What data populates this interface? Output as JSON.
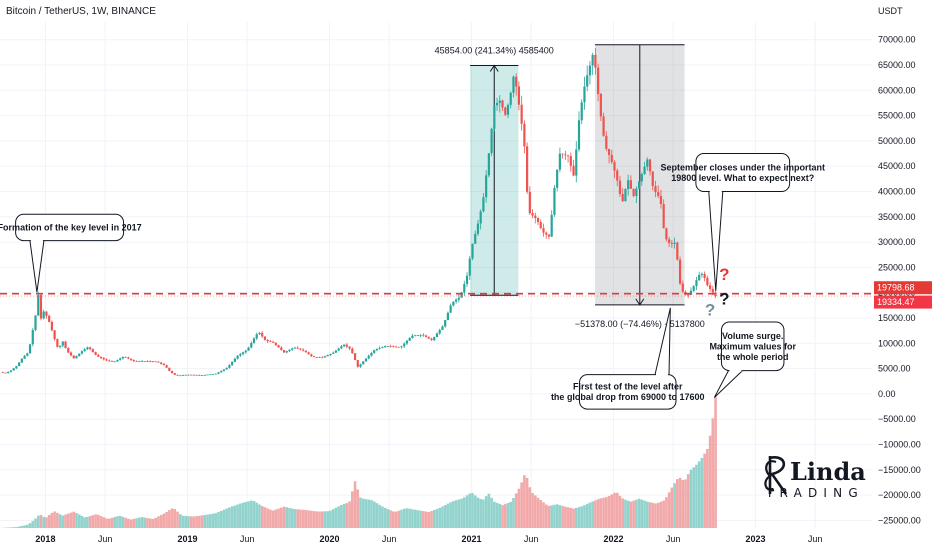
{
  "chart_data": {
    "type": "candlestick",
    "title": "Bitcoin / TetherUS, 1W, BINANCE",
    "currency": "USDT",
    "y_ticks": [
      70000,
      65000,
      60000,
      55000,
      50000,
      45000,
      40000,
      35000,
      30000,
      25000,
      20000,
      15000,
      10000,
      5000,
      0,
      -5000,
      -10000,
      -15000,
      -20000,
      -25000
    ],
    "y_tick_labels": [
      "70000.00",
      "65000.00",
      "60000.00",
      "55000.00",
      "50000.00",
      "45000.00",
      "40000.00",
      "35000.00",
      "30000.00",
      "25000.00",
      "20000.00",
      "15000.00",
      "10000.00",
      "5000.00",
      "0.00",
      "−5000.00",
      "−10000.00",
      "−15000.00",
      "−20000.00",
      "−25000.00"
    ],
    "ylim": [
      -26500,
      73500
    ],
    "x_ticks": [
      {
        "label": "2018",
        "t": 2018.0,
        "bold": true
      },
      {
        "label": "Jun",
        "t": 2018.42,
        "bold": false
      },
      {
        "label": "2019",
        "t": 2019.0,
        "bold": true
      },
      {
        "label": "Jun",
        "t": 2019.42,
        "bold": false
      },
      {
        "label": "2020",
        "t": 2020.0,
        "bold": true
      },
      {
        "label": "Jun",
        "t": 2020.42,
        "bold": false
      },
      {
        "label": "2021",
        "t": 2021.0,
        "bold": true
      },
      {
        "label": "Jun",
        "t": 2021.42,
        "bold": false
      },
      {
        "label": "2022",
        "t": 2022.0,
        "bold": true
      },
      {
        "label": "Jun",
        "t": 2022.42,
        "bold": false
      },
      {
        "label": "2023",
        "t": 2023.0,
        "bold": true
      },
      {
        "label": "Jun",
        "t": 2023.42,
        "bold": false
      }
    ],
    "xlim": [
      2017.68,
      2023.82
    ],
    "price_path": [
      [
        2017.68,
        4300
      ],
      [
        2017.72,
        4100
      ],
      [
        2017.76,
        4700
      ],
      [
        2017.8,
        5600
      ],
      [
        2017.84,
        7200
      ],
      [
        2017.88,
        8200
      ],
      [
        2017.9,
        11000
      ],
      [
        2017.93,
        15500
      ],
      [
        2017.95,
        19700
      ],
      [
        2017.97,
        14500
      ],
      [
        2017.99,
        16500
      ],
      [
        2018.03,
        14000
      ],
      [
        2018.06,
        11200
      ],
      [
        2018.09,
        8800
      ],
      [
        2018.12,
        10500
      ],
      [
        2018.15,
        8500
      ],
      [
        2018.2,
        7000
      ],
      [
        2018.25,
        8300
      ],
      [
        2018.3,
        9300
      ],
      [
        2018.36,
        7500
      ],
      [
        2018.42,
        6700
      ],
      [
        2018.48,
        6300
      ],
      [
        2018.55,
        7400
      ],
      [
        2018.62,
        6500
      ],
      [
        2018.7,
        6500
      ],
      [
        2018.78,
        6400
      ],
      [
        2018.84,
        5600
      ],
      [
        2018.88,
        4300
      ],
      [
        2018.92,
        3600
      ],
      [
        2019.0,
        3800
      ],
      [
        2019.1,
        3700
      ],
      [
        2019.2,
        4000
      ],
      [
        2019.28,
        5200
      ],
      [
        2019.35,
        7500
      ],
      [
        2019.42,
        8700
      ],
      [
        2019.48,
        11500
      ],
      [
        2019.5,
        12300
      ],
      [
        2019.55,
        10500
      ],
      [
        2019.6,
        10200
      ],
      [
        2019.68,
        8200
      ],
      [
        2019.75,
        9200
      ],
      [
        2019.82,
        8500
      ],
      [
        2019.88,
        7300
      ],
      [
        2019.95,
        7200
      ],
      [
        2020.03,
        8200
      ],
      [
        2020.1,
        9800
      ],
      [
        2020.15,
        8800
      ],
      [
        2020.2,
        5300
      ],
      [
        2020.25,
        6800
      ],
      [
        2020.32,
        8800
      ],
      [
        2020.4,
        9500
      ],
      [
        2020.5,
        9200
      ],
      [
        2020.58,
        11500
      ],
      [
        2020.65,
        11700
      ],
      [
        2020.72,
        10600
      ],
      [
        2020.8,
        13500
      ],
      [
        2020.86,
        18000
      ],
      [
        2020.92,
        19200
      ],
      [
        2020.97,
        23500
      ],
      [
        2021.0,
        29000
      ],
      [
        2021.04,
        33000
      ],
      [
        2021.08,
        38000
      ],
      [
        2021.12,
        47000
      ],
      [
        2021.16,
        57000
      ],
      [
        2021.2,
        58000
      ],
      [
        2021.24,
        55000
      ],
      [
        2021.28,
        60000
      ],
      [
        2021.3,
        63500
      ],
      [
        2021.34,
        56000
      ],
      [
        2021.37,
        50000
      ],
      [
        2021.4,
        36000
      ],
      [
        2021.46,
        34500
      ],
      [
        2021.5,
        32000
      ],
      [
        2021.55,
        31000
      ],
      [
        2021.58,
        40000
      ],
      [
        2021.62,
        47500
      ],
      [
        2021.68,
        47000
      ],
      [
        2021.72,
        43000
      ],
      [
        2021.76,
        55000
      ],
      [
        2021.8,
        61500
      ],
      [
        2021.84,
        65500
      ],
      [
        2021.86,
        67800
      ],
      [
        2021.9,
        57000
      ],
      [
        2021.94,
        49000
      ],
      [
        2021.98,
        46500
      ],
      [
        2022.02,
        43000
      ],
      [
        2022.06,
        37500
      ],
      [
        2022.1,
        42500
      ],
      [
        2022.14,
        39000
      ],
      [
        2022.18,
        42000
      ],
      [
        2022.24,
        46500
      ],
      [
        2022.28,
        40500
      ],
      [
        2022.33,
        38500
      ],
      [
        2022.36,
        31000
      ],
      [
        2022.4,
        29500
      ],
      [
        2022.44,
        30000
      ],
      [
        2022.46,
        22500
      ],
      [
        2022.49,
        20000
      ],
      [
        2022.52,
        19300
      ],
      [
        2022.56,
        21000
      ],
      [
        2022.6,
        23500
      ],
      [
        2022.63,
        23800
      ],
      [
        2022.66,
        21500
      ],
      [
        2022.7,
        20000
      ],
      [
        2022.72,
        19300
      ]
    ],
    "volume_path": [
      [
        2017.68,
        0
      ],
      [
        2017.8,
        200
      ],
      [
        2017.88,
        700
      ],
      [
        2017.92,
        1600
      ],
      [
        2017.96,
        2800
      ],
      [
        2018.0,
        2000
      ],
      [
        2018.06,
        3400
      ],
      [
        2018.12,
        2500
      ],
      [
        2018.2,
        3300
      ],
      [
        2018.28,
        2100
      ],
      [
        2018.36,
        2800
      ],
      [
        2018.44,
        1800
      ],
      [
        2018.52,
        2500
      ],
      [
        2018.6,
        1700
      ],
      [
        2018.68,
        2200
      ],
      [
        2018.76,
        1800
      ],
      [
        2018.84,
        3000
      ],
      [
        2018.9,
        4100
      ],
      [
        2018.96,
        2500
      ],
      [
        2019.04,
        2300
      ],
      [
        2019.12,
        2600
      ],
      [
        2019.2,
        3000
      ],
      [
        2019.3,
        4200
      ],
      [
        2019.38,
        5000
      ],
      [
        2019.46,
        5600
      ],
      [
        2019.52,
        4500
      ],
      [
        2019.6,
        3500
      ],
      [
        2019.68,
        4300
      ],
      [
        2019.76,
        3800
      ],
      [
        2019.84,
        3600
      ],
      [
        2019.92,
        3300
      ],
      [
        2020.0,
        3400
      ],
      [
        2020.08,
        4600
      ],
      [
        2020.14,
        5200
      ],
      [
        2020.18,
        9400
      ],
      [
        2020.22,
        6000
      ],
      [
        2020.3,
        5600
      ],
      [
        2020.38,
        4200
      ],
      [
        2020.46,
        3200
      ],
      [
        2020.54,
        4000
      ],
      [
        2020.62,
        3600
      ],
      [
        2020.7,
        3200
      ],
      [
        2020.78,
        4100
      ],
      [
        2020.86,
        5300
      ],
      [
        2020.94,
        6000
      ],
      [
        2021.0,
        7200
      ],
      [
        2021.04,
        6200
      ],
      [
        2021.08,
        5600
      ],
      [
        2021.12,
        7000
      ],
      [
        2021.16,
        5300
      ],
      [
        2021.22,
        4600
      ],
      [
        2021.28,
        5300
      ],
      [
        2021.34,
        8200
      ],
      [
        2021.38,
        11200
      ],
      [
        2021.42,
        7300
      ],
      [
        2021.48,
        5800
      ],
      [
        2021.54,
        4400
      ],
      [
        2021.6,
        4800
      ],
      [
        2021.66,
        4300
      ],
      [
        2021.72,
        3900
      ],
      [
        2021.78,
        4400
      ],
      [
        2021.84,
        5200
      ],
      [
        2021.9,
        5900
      ],
      [
        2021.96,
        6300
      ],
      [
        2022.02,
        7300
      ],
      [
        2022.06,
        6000
      ],
      [
        2022.12,
        5300
      ],
      [
        2022.18,
        5900
      ],
      [
        2022.24,
        5300
      ],
      [
        2022.3,
        4900
      ],
      [
        2022.36,
        5600
      ],
      [
        2022.42,
        8600
      ],
      [
        2022.46,
        10300
      ],
      [
        2022.5,
        9400
      ],
      [
        2022.54,
        11600
      ],
      [
        2022.58,
        12600
      ],
      [
        2022.62,
        14000
      ],
      [
        2022.66,
        15800
      ],
      [
        2022.69,
        20000
      ],
      [
        2022.72,
        26800
      ]
    ],
    "level": 19800,
    "price_labels": [
      {
        "value": 19798.68,
        "text": "19798.68",
        "color": "#e53935"
      },
      {
        "value": 19334.47,
        "text": "19334.47",
        "color": "#f23645"
      }
    ],
    "measure_up": {
      "x_start": 2020.99,
      "x_end": 2021.33,
      "y_low": 19500,
      "y_high": 64900,
      "label": "45854.00 (241.34%) 4585400",
      "color": "#26a69a"
    },
    "measure_down": {
      "x_start": 2021.87,
      "x_end": 2022.5,
      "y_low": 17600,
      "y_high": 69000,
      "label": "−51378.00 (−74.46%) −5137800",
      "color": "#787b86"
    },
    "callouts": [
      {
        "id": "key-level",
        "lines": [
          "Formation of the key level in 2017"
        ],
        "box_t": [
          2017.79,
          2018.55
        ],
        "box_y": [
          35500,
          30300
        ],
        "pointer": [
          2017.94,
          20100
        ]
      },
      {
        "id": "september",
        "lines": [
          "September closes under the important",
          "19800 level. What to expect next?"
        ],
        "box_t": [
          2022.58,
          2023.24
        ],
        "box_y": [
          47500,
          40000
        ],
        "pointer": [
          2022.72,
          20400
        ]
      },
      {
        "id": "first-test",
        "lines": [
          "First test of the level after",
          "the global drop from 69000 to 17600"
        ],
        "box_t": [
          2021.76,
          2022.44
        ],
        "box_y": [
          3800,
          -3000
        ],
        "pointer": [
          2022.4,
          17000
        ]
      },
      {
        "id": "volume-surge",
        "lines": [
          "Volume surge.",
          "Maximum values for",
          "the whole period"
        ],
        "box_t": [
          2022.76,
          2023.2
        ],
        "box_y": [
          14200,
          4600
        ],
        "pointer": [
          2022.71,
          -700
        ]
      }
    ],
    "question_marks": [
      {
        "t": 2022.78,
        "y": 22500,
        "color": "#e53935"
      },
      {
        "t": 2022.78,
        "y": 17700,
        "color": "#131722"
      },
      {
        "t": 2022.68,
        "y": 15500,
        "color": "#78909c"
      }
    ],
    "logo": {
      "line1": "Linda",
      "line2": "TRADING"
    },
    "colors": {
      "up": "#26a69a",
      "down": "#ef5350",
      "level": "#e53935",
      "grid": "#f0f3fa"
    }
  }
}
